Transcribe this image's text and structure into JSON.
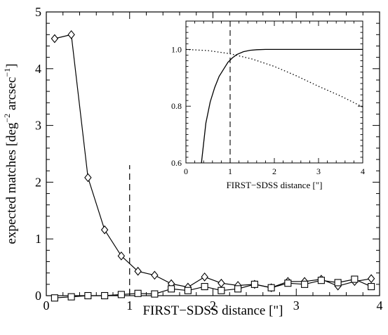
{
  "chart_data": [
    {
      "type": "line",
      "xlabel": "FIRST−SDSS distance [\"]",
      "ylabel_main": "expected matches [deg",
      "ylabel_sup1": "−2",
      "ylabel_mid": " arcsec",
      "ylabel_sup2": "−1",
      "ylabel_end": "]",
      "xlim": [
        0,
        4
      ],
      "ylim": [
        0,
        5
      ],
      "xticks": [
        "0",
        "1",
        "2",
        "3",
        "4"
      ],
      "yticks": [
        "0",
        "1",
        "2",
        "3",
        "4",
        "5"
      ],
      "grid": false,
      "vline": {
        "x": 1.0,
        "y_from": 0,
        "y_to": 2.3,
        "style": "dashed"
      },
      "series": [
        {
          "marker": "diamond",
          "x": [
            0.1,
            0.3,
            0.5,
            0.7,
            0.9,
            1.1,
            1.3,
            1.5,
            1.7,
            1.9,
            2.1,
            2.3,
            2.5,
            2.7,
            2.9,
            3.1,
            3.3,
            3.5,
            3.7,
            3.9
          ],
          "y": [
            4.53,
            4.6,
            2.08,
            1.16,
            0.7,
            0.43,
            0.36,
            0.21,
            0.15,
            0.33,
            0.22,
            0.18,
            0.2,
            0.14,
            0.25,
            0.25,
            0.29,
            0.17,
            0.25,
            0.3
          ]
        },
        {
          "marker": "square",
          "x": [
            0.1,
            0.3,
            0.5,
            0.7,
            0.9,
            1.1,
            1.3,
            1.5,
            1.7,
            1.9,
            2.1,
            2.3,
            2.5,
            2.7,
            2.9,
            3.1,
            3.3,
            3.5,
            3.7,
            3.9
          ],
          "y": [
            -0.04,
            -0.02,
            0.0,
            0.0,
            0.02,
            0.04,
            0.03,
            0.12,
            0.09,
            0.16,
            0.09,
            0.12,
            0.2,
            0.14,
            0.22,
            0.2,
            0.27,
            0.23,
            0.29,
            0.16
          ]
        }
      ]
    },
    {
      "type": "line",
      "xlabel": "FIRST−SDSS distance [\"]",
      "xlim": [
        0,
        4
      ],
      "ylim": [
        0.6,
        1.1
      ],
      "xticks": [
        "0",
        "1",
        "2",
        "3",
        "4"
      ],
      "yticks": [
        "0.6",
        "0.8",
        "1.0"
      ],
      "grid": false,
      "vline": {
        "x": 1.0,
        "style": "dashed"
      },
      "series": [
        {
          "style": "solid",
          "x": [
            0.35,
            0.45,
            0.55,
            0.65,
            0.75,
            0.85,
            0.95,
            1.05,
            1.15,
            1.3,
            1.45,
            1.6,
            1.8,
            2.0,
            2.5,
            3.0,
            3.5,
            4.0
          ],
          "y": [
            0.6,
            0.74,
            0.815,
            0.865,
            0.905,
            0.93,
            0.955,
            0.97,
            0.982,
            0.992,
            0.997,
            0.999,
            1.0,
            1.0,
            1.0,
            1.0,
            1.0,
            1.0
          ]
        },
        {
          "style": "dotted",
          "x": [
            0.0,
            0.5,
            1.0,
            1.5,
            2.0,
            2.5,
            3.0,
            3.5,
            4.0
          ],
          "y": [
            1.0,
            0.996,
            0.985,
            0.966,
            0.94,
            0.907,
            0.87,
            0.836,
            0.797
          ]
        }
      ]
    }
  ]
}
